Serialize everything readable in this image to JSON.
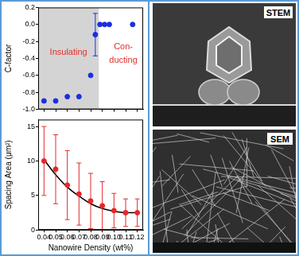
{
  "chart_data": [
    {
      "type": "scatter",
      "y_label": "C-factor",
      "x": [
        0.04,
        0.05,
        0.06,
        0.07,
        0.08,
        0.084,
        0.088,
        0.092,
        0.096,
        0.116
      ],
      "series": [
        {
          "color": "#1a2fe0",
          "marker": "circle",
          "line_style": "none",
          "values": [
            -0.9,
            -0.9,
            -0.85,
            -0.85,
            -0.6,
            -0.12,
            0,
            0,
            0,
            0
          ],
          "errors": [
            null,
            null,
            null,
            null,
            null,
            0.25,
            null,
            null,
            null,
            null
          ]
        }
      ],
      "xlim": [
        0.035,
        0.125
      ],
      "xticks": [
        0.04,
        0.05,
        0.06,
        0.07,
        0.08,
        0.09,
        {
          "value": 0.1,
          "label": "0.10"
        },
        0.11,
        0.12
      ],
      "ylim": [
        -1.0,
        0.2
      ],
      "yticks": [
        0.2,
        {
          "value": 0,
          "label": "0.0"
        },
        -0.2,
        -0.4,
        -0.6,
        -0.8,
        {
          "value": -1.0,
          "label": "-1.0"
        }
      ],
      "tick_labels": "y",
      "grid": false,
      "shaded_region": {
        "xlim": [
          0.035,
          0.087
        ],
        "color": "#d4d4d4"
      },
      "annotations": [
        {
          "text": "Insulating",
          "x": 0.061,
          "y": -0.33,
          "color": "#e0302a"
        },
        {
          "text": "Con-",
          "x": 0.108,
          "y": -0.26,
          "color": "#e0302a"
        },
        {
          "text": "ducting",
          "x": 0.108,
          "y": -0.42,
          "color": "#e0302a"
        }
      ]
    },
    {
      "type": "scatter",
      "x_label": "Nanowire Density (wt%)",
      "y_label": "Spacing Area (μm²)",
      "x": [
        0.04,
        0.05,
        0.06,
        0.07,
        0.08,
        0.09,
        0.1,
        0.11,
        0.12
      ],
      "series": [
        {
          "color": "#e8262a",
          "marker": "circle",
          "line_style": "none",
          "values": [
            10,
            8.8,
            6.5,
            5.2,
            4.2,
            3.5,
            2.8,
            2.5,
            2.5
          ],
          "errors": [
            5,
            5,
            5,
            4.5,
            4,
            3.5,
            2.5,
            2,
            2
          ]
        },
        {
          "color": "#000000",
          "marker": "none",
          "line_style": "solid",
          "values": [
            10.2,
            8.0,
            6.2,
            4.9,
            3.8,
            3.1,
            2.7,
            2.5,
            2.5
          ]
        }
      ],
      "xlim": [
        0.035,
        0.125
      ],
      "xticks": [
        0.04,
        0.05,
        0.06,
        0.07,
        0.08,
        0.09,
        {
          "value": 0.1,
          "label": "0.10"
        },
        0.11,
        0.12
      ],
      "ylim": [
        0,
        16
      ],
      "yticks": [
        0,
        5,
        10,
        15
      ],
      "grid": false
    }
  ],
  "images": [
    {
      "label": "STEM"
    },
    {
      "label": "SEM"
    }
  ]
}
